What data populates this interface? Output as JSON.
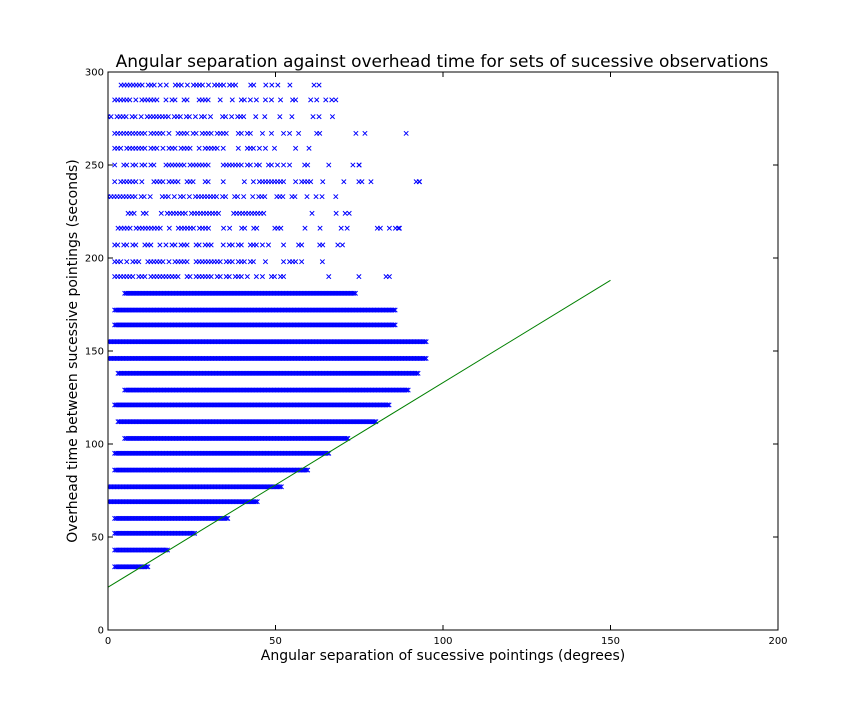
{
  "chart_data": {
    "type": "scatter",
    "title": "Angular separation against overhead time for sets of sucessive observations",
    "xlabel": "Angular separation of sucessive pointings (degrees)",
    "ylabel": "Overhead time between sucessive pointings (seconds)",
    "xlim": [
      0,
      200
    ],
    "ylim": [
      0,
      300
    ],
    "xticks": [
      "0",
      "50",
      "100",
      "150",
      "200"
    ],
    "yticks": [
      "0",
      "50",
      "100",
      "150",
      "200",
      "250",
      "300"
    ],
    "grid": false,
    "legend": "none",
    "marker": "x",
    "colors": {
      "points": "#0000ff",
      "line": "#008000"
    },
    "fit_line": {
      "x": [
        0,
        150
      ],
      "y": [
        23,
        188
      ]
    },
    "rows": [
      {
        "y": 34,
        "x_min": 2,
        "x_max": 12,
        "dense": true
      },
      {
        "y": 43,
        "x_min": 2,
        "x_max": 18,
        "dense": true
      },
      {
        "y": 52,
        "x_min": 2,
        "x_max": 26,
        "dense": true
      },
      {
        "y": 60,
        "x_min": 2,
        "x_max": 36,
        "dense": true
      },
      {
        "y": 69,
        "x_min": 0,
        "x_max": 45,
        "dense": true
      },
      {
        "y": 77,
        "x_min": 0,
        "x_max": 52,
        "dense": true
      },
      {
        "y": 86,
        "x_min": 2,
        "x_max": 60,
        "dense": true
      },
      {
        "y": 95,
        "x_min": 2,
        "x_max": 66,
        "dense": true
      },
      {
        "y": 103,
        "x_min": 5,
        "x_max": 72,
        "dense": true
      },
      {
        "y": 112,
        "x_min": 3,
        "x_max": 80,
        "dense": true
      },
      {
        "y": 121,
        "x_min": 2,
        "x_max": 84,
        "dense": true
      },
      {
        "y": 129,
        "x_min": 5,
        "x_max": 90,
        "dense": true
      },
      {
        "y": 138,
        "x_min": 3,
        "x_max": 93,
        "dense": true
      },
      {
        "y": 146,
        "x_min": 0,
        "x_max": 95,
        "dense": true
      },
      {
        "y": 155,
        "x_min": 0,
        "x_max": 95,
        "dense": true
      },
      {
        "y": 164,
        "x_min": 2,
        "x_max": 86,
        "dense": true
      },
      {
        "y": 172,
        "x_min": 2,
        "x_max": 86,
        "dense": true
      },
      {
        "y": 181,
        "x_min": 5,
        "x_max": 74,
        "dense": true
      },
      {
        "y": 190,
        "x_min": 2,
        "x_max": 84,
        "dense": false
      },
      {
        "y": 198,
        "x_min": 2,
        "x_max": 64,
        "dense": false
      },
      {
        "y": 207,
        "x_min": 2,
        "x_max": 70,
        "dense": false
      },
      {
        "y": 216,
        "x_min": 3,
        "x_max": 87,
        "dense": false
      },
      {
        "y": 224,
        "x_min": 6,
        "x_max": 72,
        "dense": false
      },
      {
        "y": 233,
        "x_min": 0,
        "x_max": 68,
        "dense": false
      },
      {
        "y": 241,
        "x_min": 2,
        "x_max": 93,
        "dense": false
      },
      {
        "y": 250,
        "x_min": 2,
        "x_max": 75,
        "dense": false
      },
      {
        "y": 259,
        "x_min": 2,
        "x_max": 60,
        "dense": false
      },
      {
        "y": 267,
        "x_min": 2,
        "x_max": 89,
        "dense": false
      },
      {
        "y": 276,
        "x_min": 0,
        "x_max": 67,
        "dense": false
      },
      {
        "y": 285,
        "x_min": 2,
        "x_max": 68,
        "dense": false
      },
      {
        "y": 293,
        "x_min": 3,
        "x_max": 63,
        "dense": false
      }
    ]
  }
}
